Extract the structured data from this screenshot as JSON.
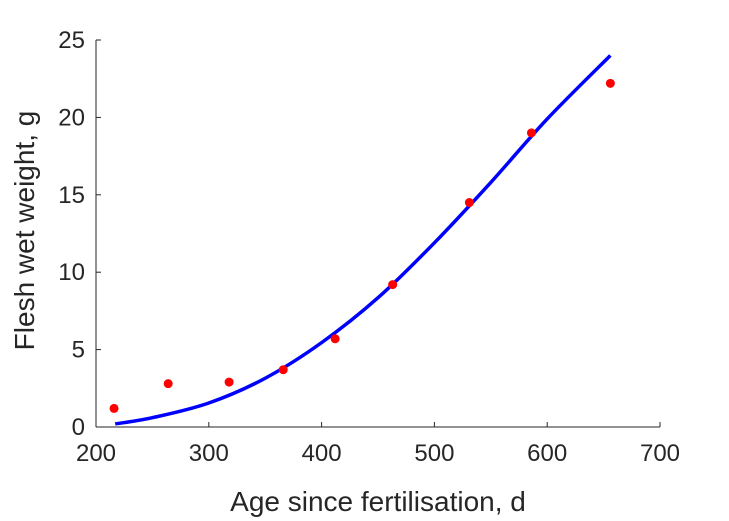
{
  "chart_data": {
    "type": "scatter",
    "title": "",
    "xlabel": "Age since fertilisation, d",
    "ylabel": "Flesh wet weight, g",
    "xlim": [
      200,
      700
    ],
    "ylim": [
      0,
      25
    ],
    "xticks": [
      "200",
      "300",
      "400",
      "500",
      "600",
      "700"
    ],
    "yticks": [
      "0",
      "5",
      "10",
      "15",
      "20",
      "25"
    ],
    "grid": false,
    "legend": "none",
    "series": [
      {
        "kind": "points",
        "color": "#ff0000",
        "x": [
          216,
          264,
          318,
          366,
          412,
          463,
          531,
          586,
          656
        ],
        "y": [
          1.2,
          2.8,
          2.9,
          3.7,
          5.7,
          9.2,
          14.5,
          19.0,
          22.2
        ]
      },
      {
        "kind": "fitted-line",
        "color": "#0000ff",
        "x": [
          217,
          250,
          300,
          350,
          400,
          450,
          500,
          550,
          600,
          656
        ],
        "y": [
          0.2,
          0.6,
          1.55,
          3.15,
          5.45,
          8.35,
          11.9,
          15.8,
          19.9,
          24.0
        ]
      }
    ]
  }
}
